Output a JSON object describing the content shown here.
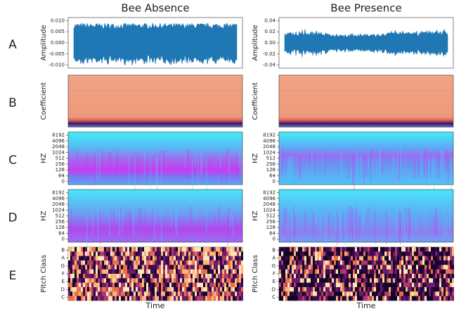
{
  "figure": {
    "columns": [
      {
        "title": "Bee Absence",
        "amplitude_ticks": [
          "0.010",
          "0.005",
          "0.000",
          "-0.005",
          "-0.010"
        ]
      },
      {
        "title": "Bee Presence",
        "amplitude_ticks": [
          "0.04",
          "0.02",
          "0.00",
          "-0.02",
          "-0.04"
        ]
      }
    ],
    "rows": [
      {
        "letter": "A",
        "ylabel": "Amplitude"
      },
      {
        "letter": "B",
        "ylabel": "Coefficient"
      },
      {
        "letter": "C",
        "ylabel": "HZ"
      },
      {
        "letter": "D",
        "ylabel": "HZ"
      },
      {
        "letter": "E",
        "ylabel": "Pitch Class"
      }
    ],
    "hz_ticks": [
      "8192",
      "4096",
      "2048",
      "1024",
      "512",
      "256",
      "128",
      "64",
      "0"
    ],
    "pitch_ticks": [
      "B",
      "A",
      "G",
      "F",
      "E",
      "D",
      "C"
    ],
    "xlabel": "Time"
  }
}
